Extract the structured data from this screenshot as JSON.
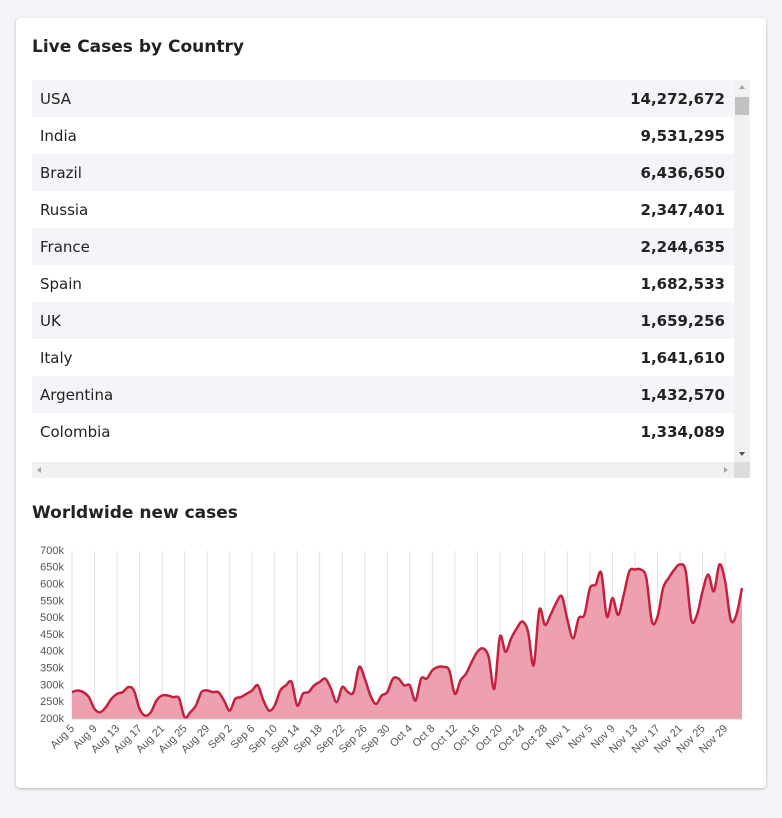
{
  "table": {
    "title": "Live Cases by Country",
    "rows": [
      [
        "USA",
        "14,272,672"
      ],
      [
        "India",
        "9,531,295"
      ],
      [
        "Brazil",
        "6,436,650"
      ],
      [
        "Russia",
        "2,347,401"
      ],
      [
        "France",
        "2,244,635"
      ],
      [
        "Spain",
        "1,682,533"
      ],
      [
        "UK",
        "1,659,256"
      ],
      [
        "Italy",
        "1,641,610"
      ],
      [
        "Argentina",
        "1,432,570"
      ],
      [
        "Colombia",
        "1,334,089"
      ]
    ]
  },
  "chart_data": {
    "type": "area",
    "title": "Worldwide new cases",
    "categories": [
      "Aug 5",
      null,
      null,
      null,
      "Aug 9",
      null,
      null,
      null,
      "Aug 13",
      null,
      null,
      null,
      "Aug 17",
      null,
      null,
      null,
      "Aug 21",
      null,
      null,
      null,
      "Aug 25",
      null,
      null,
      null,
      "Aug 29",
      null,
      null,
      null,
      "Sep 2",
      null,
      null,
      null,
      "Sep 6",
      null,
      null,
      null,
      "Sep 10",
      null,
      null,
      null,
      "Sep 14",
      null,
      null,
      null,
      "Sep 18",
      null,
      null,
      null,
      "Sep 22",
      null,
      null,
      null,
      "Sep 26",
      null,
      null,
      null,
      "Sep 30",
      null,
      null,
      null,
      "Oct 4",
      null,
      null,
      null,
      "Oct 8",
      null,
      null,
      null,
      "Oct 12",
      null,
      null,
      null,
      "Oct 16",
      null,
      null,
      null,
      "Oct 20",
      null,
      null,
      null,
      "Oct 24",
      null,
      null,
      null,
      "Oct 28",
      null,
      null,
      null,
      "Nov 1",
      null,
      null,
      null,
      "Nov 5",
      null,
      null,
      null,
      "Nov 9",
      null,
      null,
      null,
      "Nov 13",
      null,
      null,
      null,
      "Nov 17",
      null,
      null,
      null,
      "Nov 21",
      null,
      null,
      null,
      "Nov 25",
      null,
      null,
      null,
      "Nov 29",
      null,
      null,
      null
    ],
    "values": [
      280000,
      285000,
      280000,
      265000,
      230000,
      220000,
      235000,
      260000,
      275000,
      280000,
      295000,
      285000,
      230000,
      210000,
      220000,
      255000,
      270000,
      270000,
      265000,
      262000,
      205000,
      220000,
      240000,
      280000,
      285000,
      280000,
      280000,
      255000,
      225000,
      260000,
      265000,
      275000,
      285000,
      300000,
      255000,
      225000,
      240000,
      285000,
      300000,
      310000,
      240000,
      275000,
      280000,
      300000,
      310000,
      320000,
      290000,
      250000,
      295000,
      280000,
      280000,
      355000,
      320000,
      270000,
      245000,
      270000,
      280000,
      320000,
      320000,
      300000,
      300000,
      255000,
      320000,
      320000,
      345000,
      355000,
      355000,
      345000,
      275000,
      315000,
      335000,
      370000,
      400000,
      410000,
      385000,
      290000,
      445000,
      400000,
      440000,
      470000,
      490000,
      460000,
      360000,
      525000,
      480000,
      510000,
      545000,
      565000,
      495000,
      440000,
      500000,
      510000,
      590000,
      600000,
      635000,
      505000,
      560000,
      510000,
      570000,
      640000,
      645000,
      645000,
      620000,
      490000,
      505000,
      590000,
      620000,
      645000,
      660000,
      640000,
      495000,
      510000,
      580000,
      630000,
      580000,
      660000,
      610000,
      495000,
      510000,
      590000
    ],
    "color": "#c4213f",
    "fill": "#eda1b0",
    "ylim": [
      200000,
      700000
    ],
    "yticks": [
      {
        "value": 200000,
        "label": "200k"
      },
      {
        "value": 250000,
        "label": "250k"
      },
      {
        "value": 300000,
        "label": "300k"
      },
      {
        "value": 350000,
        "label": "350k"
      },
      {
        "value": 400000,
        "label": "400k"
      },
      {
        "value": 450000,
        "label": "450k"
      },
      {
        "value": 500000,
        "label": "500k"
      },
      {
        "value": 550000,
        "label": "550k"
      },
      {
        "value": 600000,
        "label": "600k"
      },
      {
        "value": 650000,
        "label": "650k"
      },
      {
        "value": 700000,
        "label": "700k"
      }
    ],
    "grid": "x"
  }
}
